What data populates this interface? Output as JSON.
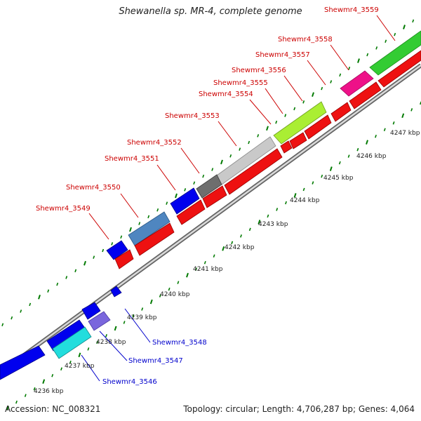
{
  "title": "Shewanella sp. MR-4, complete genome",
  "accession": "Accession: NC_008321",
  "summary": "Topology: circular; Length: 4,706,287 bp; Genes: 4,064",
  "colors": {
    "label_red": "#cc0000",
    "label_blue": "#0000cc",
    "tick_green": "#007a00",
    "backbone": "#9a9a9a",
    "backbone_dark": "#6a6a6a"
  },
  "scale_labels": [
    "4236 kbp",
    "4237 kbp",
    "4238 kbp",
    "4239 kbp",
    "4240 kbp",
    "4241 kbp",
    "4242 kbp",
    "4243 kbp",
    "4244 kbp",
    "4245 kbp",
    "4246 kbp",
    "4247 kbp"
  ],
  "genes": [
    {
      "name": "Shewmr4_3546",
      "color": "#0000cc"
    },
    {
      "name": "Shewmr4_3547",
      "color": "#0000cc"
    },
    {
      "name": "Shewmr4_3548",
      "color": "#0000cc"
    },
    {
      "name": "Shewmr4_3549",
      "color": "#cc0000"
    },
    {
      "name": "Shewmr4_3550",
      "color": "#cc0000"
    },
    {
      "name": "Shewmr4_3551",
      "color": "#cc0000"
    },
    {
      "name": "Shewmr4_3552",
      "color": "#cc0000"
    },
    {
      "name": "Shewmr4_3553",
      "color": "#cc0000"
    },
    {
      "name": "Shewmr4_3554",
      "color": "#cc0000"
    },
    {
      "name": "Shewmr4_3555",
      "color": "#cc0000"
    },
    {
      "name": "Shewmr4_3556",
      "color": "#cc0000"
    },
    {
      "name": "Shewmr4_3557",
      "color": "#cc0000"
    },
    {
      "name": "Shewmr4_3558",
      "color": "#cc0000"
    },
    {
      "name": "Shewmr4_3559",
      "color": "#cc0000"
    }
  ]
}
